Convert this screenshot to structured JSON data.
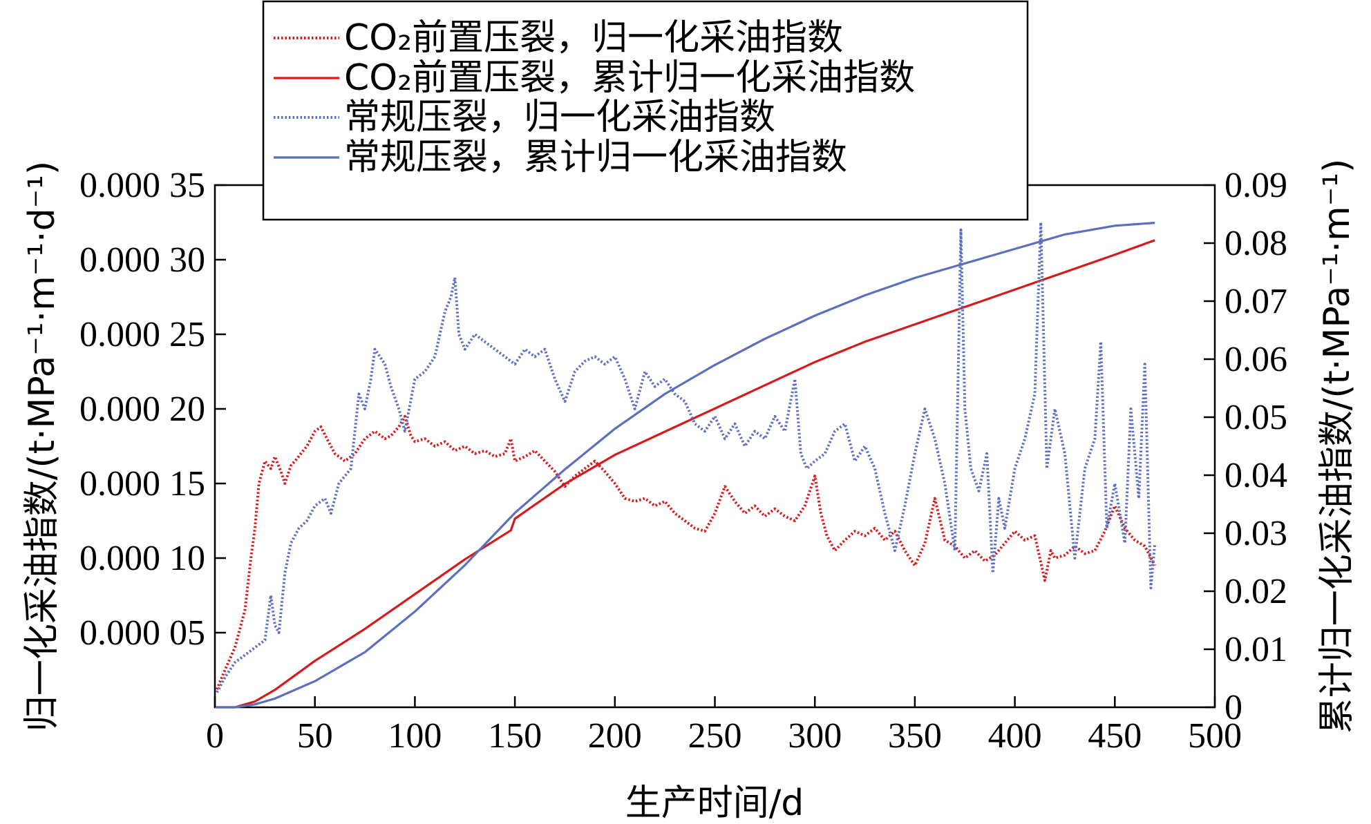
{
  "chart_data": {
    "type": "line",
    "xlabel": "生产时间/d",
    "ylabel_left": "归一化采油指数/(t·MPa⁻¹·m⁻¹·d⁻¹)",
    "ylabel_right": "累计归一化采油指数/(t·MPa⁻¹·m⁻¹)",
    "xlim": [
      0,
      500
    ],
    "ylim_left": [
      0,
      0.00035
    ],
    "ylim_right": [
      0,
      0.09
    ],
    "x_ticks": [
      "0",
      "50",
      "100",
      "150",
      "200",
      "250",
      "300",
      "350",
      "400",
      "450",
      "500"
    ],
    "y_left_ticks": [
      "0.000 05",
      "0.000 10",
      "0.000 15",
      "0.000 20",
      "0.000 25",
      "0.000 30",
      "0.000 35"
    ],
    "y_right_ticks": [
      "0",
      "0.01",
      "0.02",
      "0.03",
      "0.04",
      "0.05",
      "0.06",
      "0.07",
      "0.08",
      "0.09"
    ],
    "legend_position": "top-center",
    "grid": false,
    "colors": {
      "co2": "#d7191c",
      "conventional": "#5b6fbf"
    },
    "series": [
      {
        "name": "CO₂前置压裂，归一化采油指数",
        "axis": "left",
        "style": "dotted",
        "color": "#d7191c",
        "points": [
          [
            1,
            1.2e-05
          ],
          [
            5,
            2.5e-05
          ],
          [
            10,
            4e-05
          ],
          [
            15,
            6.5e-05
          ],
          [
            18,
            0.0001
          ],
          [
            20,
            0.00012
          ],
          [
            22,
            0.00015
          ],
          [
            25,
            0.000165
          ],
          [
            28,
            0.00016
          ],
          [
            30,
            0.000168
          ],
          [
            33,
            0.000158
          ],
          [
            35,
            0.00015
          ],
          [
            38,
            0.000162
          ],
          [
            40,
            0.000165
          ],
          [
            43,
            0.00017
          ],
          [
            46,
            0.000175
          ],
          [
            50,
            0.000185
          ],
          [
            53,
            0.000188
          ],
          [
            56,
            0.00018
          ],
          [
            60,
            0.00017
          ],
          [
            65,
            0.000165
          ],
          [
            70,
            0.00017
          ],
          [
            75,
            0.00018
          ],
          [
            80,
            0.000185
          ],
          [
            85,
            0.00018
          ],
          [
            88,
            0.000182
          ],
          [
            92,
            0.000188
          ],
          [
            95,
            0.000195
          ],
          [
            98,
            0.000182
          ],
          [
            100,
            0.000178
          ],
          [
            105,
            0.00018
          ],
          [
            110,
            0.000175
          ],
          [
            115,
            0.000178
          ],
          [
            120,
            0.000172
          ],
          [
            125,
            0.000175
          ],
          [
            130,
            0.00017
          ],
          [
            135,
            0.000172
          ],
          [
            140,
            0.000168
          ],
          [
            145,
            0.00017
          ],
          [
            148,
            0.00018
          ],
          [
            150,
            0.000165
          ],
          [
            155,
            0.000168
          ],
          [
            160,
            0.000172
          ],
          [
            165,
            0.000165
          ],
          [
            170,
            0.000158
          ],
          [
            175,
            0.000148
          ],
          [
            180,
            0.000155
          ],
          [
            185,
            0.00016
          ],
          [
            190,
            0.000165
          ],
          [
            195,
            0.000158
          ],
          [
            200,
            0.00015
          ],
          [
            205,
            0.00014
          ],
          [
            210,
            0.000138
          ],
          [
            215,
            0.00014
          ],
          [
            220,
            0.000135
          ],
          [
            225,
            0.000138
          ],
          [
            230,
            0.00013
          ],
          [
            235,
            0.000125
          ],
          [
            240,
            0.00012
          ],
          [
            245,
            0.000118
          ],
          [
            250,
            0.00013
          ],
          [
            255,
            0.000148
          ],
          [
            260,
            0.000138
          ],
          [
            265,
            0.00013
          ],
          [
            270,
            0.000135
          ],
          [
            275,
            0.000128
          ],
          [
            280,
            0.000133
          ],
          [
            285,
            0.000128
          ],
          [
            290,
            0.000125
          ],
          [
            295,
            0.000135
          ],
          [
            300,
            0.000155
          ],
          [
            303,
            0.00013
          ],
          [
            306,
            0.000115
          ],
          [
            310,
            0.000105
          ],
          [
            315,
            0.000112
          ],
          [
            320,
            0.000118
          ],
          [
            325,
            0.000115
          ],
          [
            330,
            0.00012
          ],
          [
            335,
            0.000112
          ],
          [
            340,
            0.000118
          ],
          [
            345,
            0.000105
          ],
          [
            350,
            9.5e-05
          ],
          [
            355,
            0.00011
          ],
          [
            360,
            0.00014
          ],
          [
            365,
            0.000112
          ],
          [
            370,
            0.000108
          ],
          [
            375,
            0.0001
          ],
          [
            380,
            0.000105
          ],
          [
            385,
            9.8e-05
          ],
          [
            390,
            0.000102
          ],
          [
            395,
            0.00011
          ],
          [
            400,
            0.000118
          ],
          [
            405,
            0.000112
          ],
          [
            410,
            0.000115
          ],
          [
            415,
            8.5e-05
          ],
          [
            418,
            0.000105
          ],
          [
            420,
            0.0001
          ],
          [
            425,
            0.000102
          ],
          [
            430,
            0.000108
          ],
          [
            435,
            0.000103
          ],
          [
            440,
            0.000105
          ],
          [
            445,
            0.000118
          ],
          [
            450,
            0.000135
          ],
          [
            455,
            0.00012
          ],
          [
            460,
            0.000112
          ],
          [
            465,
            0.000108
          ],
          [
            470,
            9.5e-05
          ]
        ]
      },
      {
        "name": "CO₂前置压裂，累计归一化采油指数",
        "axis": "right",
        "style": "solid",
        "color": "#d7191c",
        "points": [
          [
            0,
            0
          ],
          [
            10,
            0
          ],
          [
            20,
            0.001
          ],
          [
            30,
            0.003
          ],
          [
            40,
            0.0055
          ],
          [
            50,
            0.008
          ],
          [
            75,
            0.0135
          ],
          [
            100,
            0.0195
          ],
          [
            125,
            0.0255
          ],
          [
            148,
            0.0305
          ],
          [
            150,
            0.0325
          ],
          [
            175,
            0.0385
          ],
          [
            200,
            0.0435
          ],
          [
            225,
            0.0475
          ],
          [
            250,
            0.0515
          ],
          [
            275,
            0.0555
          ],
          [
            300,
            0.0595
          ],
          [
            325,
            0.063
          ],
          [
            350,
            0.066
          ],
          [
            375,
            0.069
          ],
          [
            400,
            0.072
          ],
          [
            425,
            0.075
          ],
          [
            450,
            0.078
          ],
          [
            470,
            0.0805
          ]
        ]
      },
      {
        "name": "常规压裂，归一化采油指数",
        "axis": "left",
        "style": "dotted",
        "color": "#5b6fbf",
        "points": [
          [
            1,
            1e-05
          ],
          [
            5,
            2e-05
          ],
          [
            10,
            3e-05
          ],
          [
            15,
            3.5e-05
          ],
          [
            20,
            4e-05
          ],
          [
            25,
            4.5e-05
          ],
          [
            28,
            7.5e-05
          ],
          [
            30,
            5.5e-05
          ],
          [
            32,
            5e-05
          ],
          [
            35,
            9e-05
          ],
          [
            38,
            0.00011
          ],
          [
            42,
            0.00012
          ],
          [
            46,
            0.000125
          ],
          [
            50,
            0.000135
          ],
          [
            55,
            0.00014
          ],
          [
            58,
            0.00013
          ],
          [
            62,
            0.00015
          ],
          [
            68,
            0.00016
          ],
          [
            72,
            0.00021
          ],
          [
            75,
            0.0002
          ],
          [
            78,
            0.00022
          ],
          [
            80,
            0.00024
          ],
          [
            85,
            0.00023
          ],
          [
            88,
            0.000215
          ],
          [
            92,
            0.0002
          ],
          [
            95,
            0.000185
          ],
          [
            100,
            0.00022
          ],
          [
            105,
            0.000225
          ],
          [
            110,
            0.000235
          ],
          [
            115,
            0.000265
          ],
          [
            118,
            0.000275
          ],
          [
            120,
            0.000288
          ],
          [
            122,
            0.00025
          ],
          [
            125,
            0.00024
          ],
          [
            130,
            0.00025
          ],
          [
            135,
            0.000245
          ],
          [
            140,
            0.00024
          ],
          [
            145,
            0.000235
          ],
          [
            150,
            0.00023
          ],
          [
            155,
            0.00024
          ],
          [
            160,
            0.000235
          ],
          [
            165,
            0.00024
          ],
          [
            170,
            0.00022
          ],
          [
            175,
            0.000205
          ],
          [
            180,
            0.000225
          ],
          [
            185,
            0.000232
          ],
          [
            190,
            0.000235
          ],
          [
            195,
            0.00023
          ],
          [
            200,
            0.000235
          ],
          [
            205,
            0.00022
          ],
          [
            210,
            0.0002
          ],
          [
            215,
            0.000225
          ],
          [
            220,
            0.000215
          ],
          [
            225,
            0.00022
          ],
          [
            230,
            0.00021
          ],
          [
            235,
            0.000205
          ],
          [
            240,
            0.00019
          ],
          [
            245,
            0.000185
          ],
          [
            250,
            0.000195
          ],
          [
            255,
            0.00018
          ],
          [
            260,
            0.00019
          ],
          [
            265,
            0.000175
          ],
          [
            270,
            0.000185
          ],
          [
            275,
            0.00018
          ],
          [
            280,
            0.000195
          ],
          [
            285,
            0.000185
          ],
          [
            290,
            0.00022
          ],
          [
            293,
            0.00017
          ],
          [
            296,
            0.00016
          ],
          [
            300,
            0.000165
          ],
          [
            305,
            0.00017
          ],
          [
            310,
            0.000185
          ],
          [
            315,
            0.00019
          ],
          [
            320,
            0.000165
          ],
          [
            325,
            0.000175
          ],
          [
            330,
            0.00016
          ],
          [
            335,
            0.00013
          ],
          [
            340,
            0.000105
          ],
          [
            345,
            0.000135
          ],
          [
            350,
            0.00017
          ],
          [
            355,
            0.0002
          ],
          [
            360,
            0.00018
          ],
          [
            365,
            0.00015
          ],
          [
            370,
            0.000105
          ],
          [
            373,
            0.00032
          ],
          [
            375,
            0.0002
          ],
          [
            378,
            0.00016
          ],
          [
            382,
            0.000145
          ],
          [
            386,
            0.00017
          ],
          [
            389,
            9e-05
          ],
          [
            392,
            0.00014
          ],
          [
            395,
            0.00012
          ],
          [
            400,
            0.00016
          ],
          [
            405,
            0.00018
          ],
          [
            410,
            0.00021
          ],
          [
            413,
            0.000325
          ],
          [
            416,
            0.00016
          ],
          [
            420,
            0.0002
          ],
          [
            425,
            0.00017
          ],
          [
            430,
            0.0001
          ],
          [
            435,
            0.00016
          ],
          [
            440,
            0.00018
          ],
          [
            443,
            0.000245
          ],
          [
            446,
            0.00012
          ],
          [
            450,
            0.00015
          ],
          [
            455,
            0.00011
          ],
          [
            458,
            0.0002
          ],
          [
            462,
            0.00014
          ],
          [
            465,
            0.00023
          ],
          [
            468,
            8e-05
          ],
          [
            470,
            0.00011
          ]
        ]
      },
      {
        "name": "常规压裂，累计归一化采油指数",
        "axis": "right",
        "style": "solid",
        "color": "#5b6fbf",
        "points": [
          [
            0,
            0
          ],
          [
            10,
            0
          ],
          [
            20,
            0.0005
          ],
          [
            30,
            0.0015
          ],
          [
            40,
            0.003
          ],
          [
            50,
            0.0045
          ],
          [
            75,
            0.0095
          ],
          [
            100,
            0.0165
          ],
          [
            125,
            0.0245
          ],
          [
            150,
            0.0335
          ],
          [
            175,
            0.041
          ],
          [
            200,
            0.048
          ],
          [
            225,
            0.054
          ],
          [
            250,
            0.059
          ],
          [
            275,
            0.0635
          ],
          [
            300,
            0.0675
          ],
          [
            325,
            0.071
          ],
          [
            350,
            0.074
          ],
          [
            375,
            0.0765
          ],
          [
            400,
            0.079
          ],
          [
            425,
            0.0815
          ],
          [
            450,
            0.083
          ],
          [
            470,
            0.0835
          ]
        ]
      }
    ]
  }
}
